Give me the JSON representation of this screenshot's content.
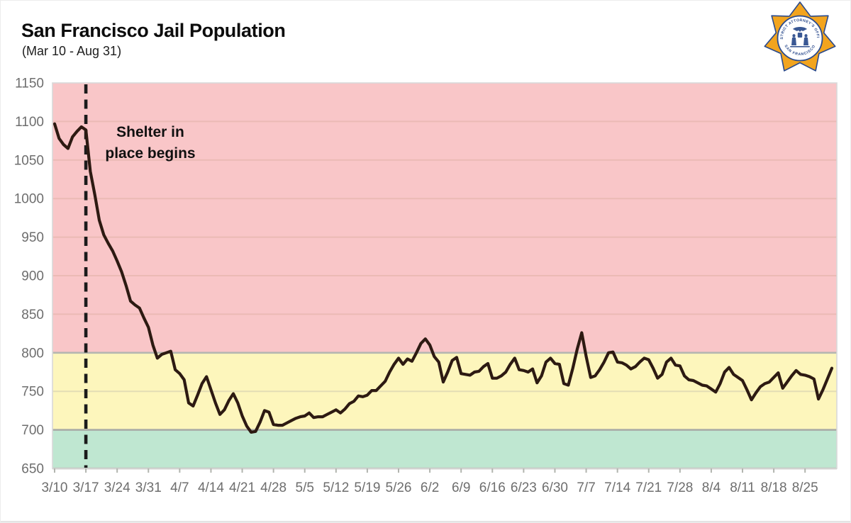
{
  "header": {
    "title": "San Francisco Jail Population",
    "subtitle": "(Mar 10 - Aug 31)"
  },
  "logo": {
    "name": "sf-district-attorney-badge",
    "ring_text_top": "DISTRICT ATTORNEY'S OFFICE",
    "ring_text_bottom": "SAN FRANCISCO",
    "star_color": "#F2A41E",
    "ring_color": "#2a4a8c"
  },
  "annotation": {
    "line1": "Shelter in",
    "line2": "place begins"
  },
  "chart_data": {
    "type": "line",
    "title": "San Francisco Jail Population",
    "date_range": "(Mar 10 - Aug 31)",
    "ylim": [
      650,
      1150
    ],
    "y_ticks": [
      650,
      700,
      750,
      800,
      850,
      900,
      950,
      1000,
      1050,
      1100,
      1150
    ],
    "x_tick_labels": [
      "3/10",
      "3/17",
      "3/24",
      "3/31",
      "4/7",
      "4/14",
      "4/21",
      "4/28",
      "5/5",
      "5/12",
      "5/19",
      "5/26",
      "6/2",
      "6/9",
      "6/16",
      "6/23",
      "6/30",
      "7/7",
      "7/14",
      "7/21",
      "7/28",
      "8/4",
      "8/11",
      "8/18",
      "8/25"
    ],
    "x_start_date": "3/10",
    "x_end_date": "8/31",
    "days_per_tick": 7,
    "grid": "horizontal-only",
    "legend": "none",
    "bands": [
      {
        "name": "above-800",
        "from": 800,
        "to": 1150,
        "color": "#f9c6c8"
      },
      {
        "name": "700-to-800",
        "from": 700,
        "to": 800,
        "color": "#fdf6bc"
      },
      {
        "name": "650-to-700",
        "from": 650,
        "to": 700,
        "color": "#bfe7d1"
      }
    ],
    "event_line": {
      "x_label": "3/17",
      "day_index": 7,
      "label": "Shelter in place begins",
      "style": "dashed",
      "color": "#1b1b1b"
    },
    "series": [
      {
        "name": "Daily jail population",
        "color": "#2d1a12",
        "values": [
          1097,
          1078,
          1070,
          1065,
          1080,
          1087,
          1093,
          1089,
          1035,
          1005,
          972,
          953,
          942,
          932,
          919,
          905,
          887,
          867,
          862,
          858,
          845,
          833,
          810,
          793,
          798,
          800,
          802,
          778,
          773,
          765,
          735,
          731,
          745,
          760,
          769,
          752,
          735,
          720,
          726,
          738,
          747,
          735,
          718,
          705,
          697,
          698,
          710,
          725,
          723,
          707,
          706,
          706,
          709,
          712,
          715,
          717,
          718,
          722,
          716,
          717,
          717,
          720,
          723,
          726,
          722,
          727,
          734,
          737,
          744,
          743,
          745,
          751,
          751,
          757,
          763,
          775,
          785,
          793,
          785,
          792,
          789,
          800,
          812,
          818,
          810,
          795,
          788,
          762,
          775,
          790,
          794,
          773,
          772,
          771,
          775,
          776,
          782,
          786,
          767,
          767,
          770,
          775,
          785,
          793,
          778,
          777,
          775,
          779,
          761,
          770,
          788,
          793,
          786,
          785,
          760,
          758,
          780,
          805,
          826,
          795,
          768,
          770,
          778,
          788,
          800,
          801,
          788,
          787,
          784,
          779,
          782,
          788,
          793,
          791,
          780,
          767,
          772,
          788,
          793,
          784,
          783,
          770,
          765,
          764,
          761,
          758,
          757,
          753,
          749,
          760,
          775,
          781,
          772,
          768,
          764,
          752,
          739,
          748,
          756,
          760,
          762,
          768,
          774,
          754,
          762,
          770,
          777,
          772,
          771,
          769,
          766,
          740,
          752,
          766,
          780
        ]
      }
    ],
    "colors": {
      "axis_label": "#6e6e6e",
      "grid_pink": "#ebbab5",
      "grid_yellow": "#e3ddb4",
      "threshold_800": "#b5b7b1",
      "threshold_700": "#a9aca6",
      "axis_650": "#b2b5af",
      "border": "#d9d9d9"
    }
  }
}
